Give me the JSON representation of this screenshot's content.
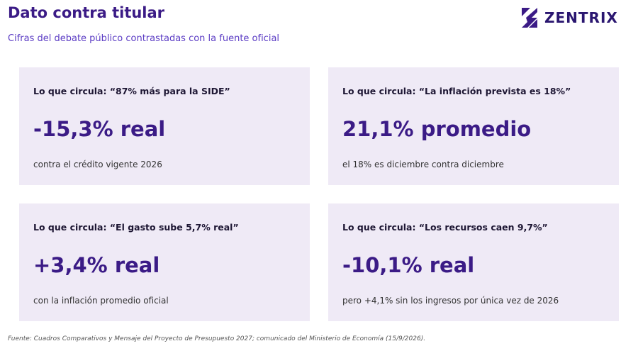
{
  "header": {
    "title": "Dato contra titular",
    "subtitle": "Cifras del debate público contrastadas con la fuente oficial",
    "logo": "ZENTRIX"
  },
  "cards": [
    {
      "claim": "Lo que circula: “87% más para la SIDE”",
      "value": "-15,3% real",
      "note": "contra el crédito vigente 2026"
    },
    {
      "claim": "Lo que circula: “La inflación prevista es 18%”",
      "value": "21,1% promedio",
      "note": "el 18% es diciembre contra diciembre"
    },
    {
      "claim": "Lo que circula: “El gasto sube 5,7% real”",
      "value": "+3,4% real",
      "note": "con la inflación promedio oficial"
    },
    {
      "claim": "Lo que circula: “Los recursos caen 9,7%”",
      "value": "-10,1% real",
      "note": "pero +4,1% sin los ingresos por única vez de 2026"
    }
  ],
  "footer": "Fuente: Cuadros Comparativos y Mensaje del Proyecto de Presupuesto 2027; comunicado del Ministerio de Economía (15/9/2026)."
}
